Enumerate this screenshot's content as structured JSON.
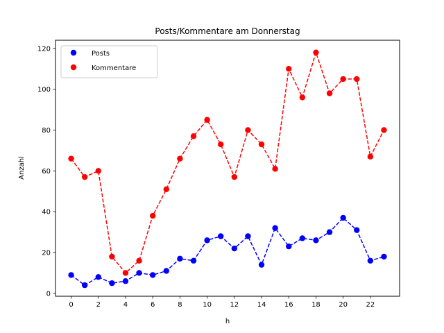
{
  "chart_data": {
    "type": "line",
    "title": "Posts/Kommentare am Donnerstag",
    "xlabel": "h",
    "ylabel": "Anzahl",
    "xlim": [
      -1.15,
      24.15
    ],
    "ylim": [
      -1.4,
      124.0
    ],
    "x_ticks": [
      0,
      2,
      4,
      6,
      8,
      10,
      12,
      14,
      16,
      18,
      20,
      22
    ],
    "y_ticks": [
      0,
      20,
      40,
      60,
      80,
      100,
      120
    ],
    "grid": false,
    "legend_position": "upper-left",
    "x": [
      0,
      1,
      2,
      3,
      4,
      5,
      6,
      7,
      8,
      9,
      10,
      11,
      12,
      13,
      14,
      15,
      16,
      17,
      18,
      19,
      20,
      21,
      22,
      23
    ],
    "series": [
      {
        "name": "Posts",
        "color": "#0000ff",
        "values": [
          9,
          4,
          8,
          5,
          6,
          10,
          9,
          11,
          17,
          16,
          26,
          28,
          22,
          28,
          14,
          32,
          23,
          27,
          26,
          30,
          37,
          31,
          16,
          18
        ]
      },
      {
        "name": "Kommentare",
        "color": "#ff0000",
        "values": [
          66,
          57,
          60,
          18,
          10,
          16,
          38,
          51,
          66,
          77,
          85,
          73,
          57,
          80,
          73,
          61,
          110,
          96,
          118,
          98,
          105,
          105,
          67,
          80
        ]
      }
    ]
  }
}
